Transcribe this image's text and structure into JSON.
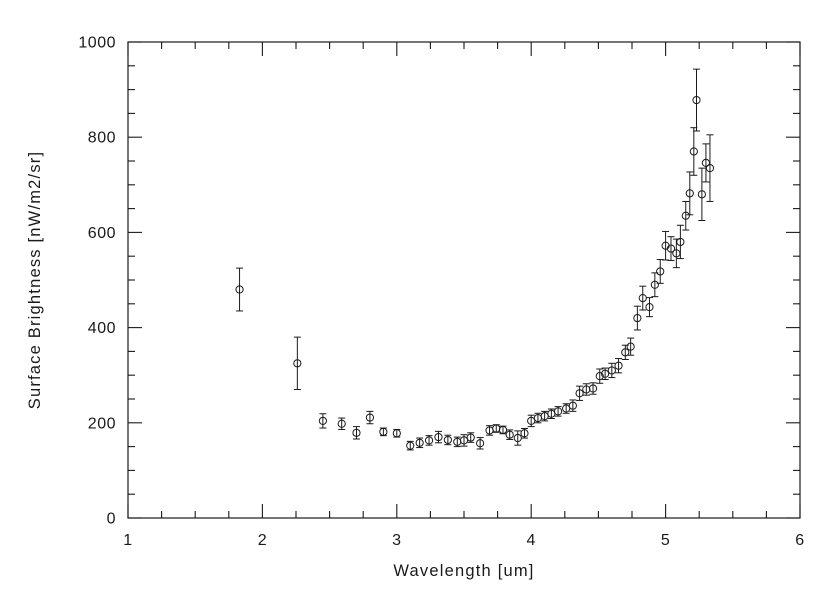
{
  "chart_data": {
    "type": "scatter",
    "title": "",
    "xlabel": "Wavelength [um]",
    "ylabel": "Surface Brightness [nW/m2/sr]",
    "xlim": [
      1,
      6
    ],
    "ylim": [
      0,
      1000
    ],
    "xticks": [
      1,
      2,
      3,
      4,
      5,
      6
    ],
    "yticks": [
      0,
      200,
      400,
      600,
      800,
      1000
    ],
    "x_minor_step": 0.25,
    "y_minor_step": 50,
    "grid": false,
    "legend": null,
    "marker": "open-circle",
    "error_bars": true,
    "line_color": "#1a1a1a",
    "background_color": "#ffffff",
    "point_format": [
      "wavelength_um",
      "brightness_nW_m2_sr",
      "error"
    ],
    "points": [
      [
        1.83,
        480,
        45
      ],
      [
        2.26,
        325,
        55
      ],
      [
        2.45,
        204,
        15
      ],
      [
        2.59,
        198,
        12
      ],
      [
        2.7,
        179,
        13
      ],
      [
        2.8,
        211,
        13
      ],
      [
        2.9,
        181,
        8
      ],
      [
        3.0,
        178,
        8
      ],
      [
        3.1,
        152,
        9
      ],
      [
        3.17,
        158,
        10
      ],
      [
        3.24,
        163,
        10
      ],
      [
        3.31,
        170,
        12
      ],
      [
        3.38,
        164,
        10
      ],
      [
        3.45,
        160,
        10
      ],
      [
        3.5,
        163,
        12
      ],
      [
        3.55,
        169,
        10
      ],
      [
        3.62,
        157,
        12
      ],
      [
        3.69,
        184,
        10
      ],
      [
        3.74,
        188,
        8
      ],
      [
        3.79,
        185,
        8
      ],
      [
        3.84,
        175,
        10
      ],
      [
        3.9,
        168,
        15
      ],
      [
        3.95,
        178,
        10
      ],
      [
        4.0,
        204,
        12
      ],
      [
        4.05,
        210,
        10
      ],
      [
        4.1,
        214,
        10
      ],
      [
        4.15,
        219,
        10
      ],
      [
        4.2,
        224,
        10
      ],
      [
        4.26,
        230,
        10
      ],
      [
        4.31,
        236,
        12
      ],
      [
        4.36,
        262,
        15
      ],
      [
        4.41,
        270,
        12
      ],
      [
        4.46,
        272,
        12
      ],
      [
        4.51,
        298,
        15
      ],
      [
        4.55,
        303,
        12
      ],
      [
        4.6,
        310,
        15
      ],
      [
        4.65,
        320,
        15
      ],
      [
        4.7,
        348,
        15
      ],
      [
        4.74,
        360,
        18
      ],
      [
        4.79,
        420,
        25
      ],
      [
        4.83,
        462,
        25
      ],
      [
        4.88,
        443,
        20
      ],
      [
        4.92,
        490,
        25
      ],
      [
        4.96,
        518,
        25
      ],
      [
        5.0,
        572,
        30
      ],
      [
        5.04,
        566,
        25
      ],
      [
        5.08,
        556,
        30
      ],
      [
        5.11,
        580,
        35
      ],
      [
        5.15,
        635,
        30
      ],
      [
        5.18,
        682,
        45
      ],
      [
        5.21,
        770,
        50
      ],
      [
        5.23,
        878,
        65
      ],
      [
        5.27,
        680,
        55
      ],
      [
        5.3,
        746,
        40
      ],
      [
        5.33,
        735,
        70
      ]
    ]
  }
}
